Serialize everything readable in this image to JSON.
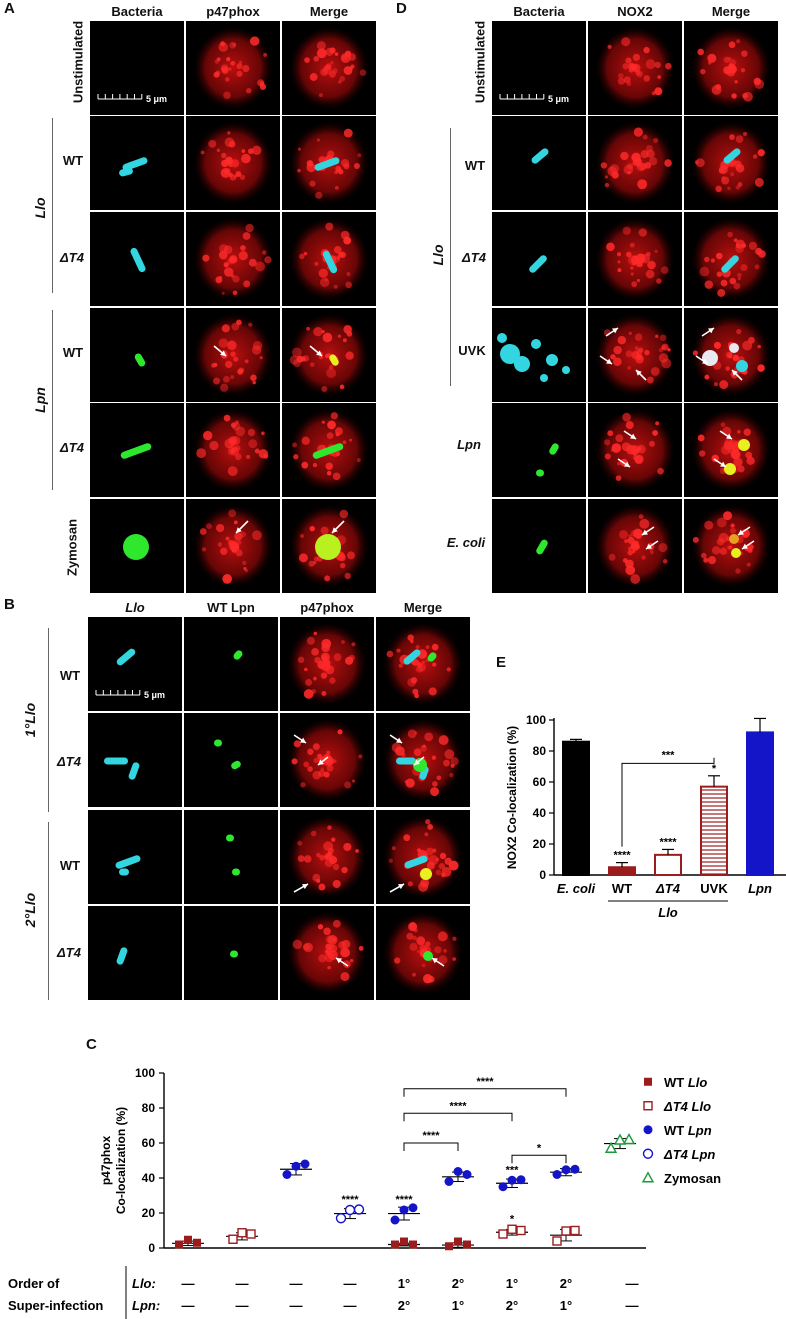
{
  "panelA": {
    "label": "A",
    "columns": [
      "Bacteria",
      "p47phox",
      "Merge"
    ],
    "rows": [
      "Unstimulated",
      "WT",
      "ΔT4",
      "WT",
      "ΔT4",
      "Zymosan"
    ],
    "groups": [
      "Llo",
      "Lpn"
    ],
    "scalebar": "5 μm"
  },
  "panelB": {
    "label": "B",
    "columns": [
      "Llo",
      "WT Lpn",
      "p47phox",
      "Merge"
    ],
    "rows": [
      "WT",
      "ΔT4",
      "WT",
      "ΔT4"
    ],
    "groups": [
      "1°Llo",
      "2°Llo"
    ],
    "scalebar": "5 μm"
  },
  "panelD": {
    "label": "D",
    "columns": [
      "Bacteria",
      "NOX2",
      "Merge"
    ],
    "rows": [
      "Unstimulated",
      "WT",
      "ΔT4",
      "UVK",
      "Lpn",
      "E. coli"
    ],
    "groups": [
      "Llo"
    ],
    "scalebar": "5 μm"
  },
  "panelE": {
    "label": "E",
    "chart_data": {
      "type": "bar",
      "categories": [
        "E. coli",
        "WT",
        "ΔT4",
        "UVK",
        "Lpn"
      ],
      "values": [
        86,
        5,
        13,
        57,
        92
      ],
      "errors": [
        1.5,
        3,
        3.5,
        7,
        9
      ],
      "significance": [
        "",
        "****",
        "****",
        "*",
        ""
      ],
      "bracket": {
        "from": "WT",
        "to": "UVK",
        "label": "***"
      },
      "group_label": "Llo",
      "ylabel": "NOX2 Co-localization (%)",
      "ylim": [
        0,
        100
      ],
      "yticks": [
        0,
        20,
        40,
        60,
        80,
        100
      ],
      "colors": [
        "#000000",
        "#9b1c1c",
        "#9b1c1c",
        "#9b1c1c",
        "#1414c8"
      ],
      "fill": [
        "solid",
        "solid",
        "hollow",
        "hatched",
        "solid"
      ]
    }
  },
  "panelC": {
    "label": "C",
    "chart_data": {
      "type": "scatter",
      "ylabel": "p47phox Co-localization (%)",
      "ylim": [
        0,
        100
      ],
      "yticks": [
        0,
        20,
        40,
        60,
        80,
        100
      ],
      "series": [
        {
          "name": "WT Llo",
          "color": "#9b1c1c",
          "marker": "square-filled",
          "points": [
            {
              "x": 1,
              "y": [
                2,
                3,
                3
              ]
            },
            {
              "x": 5,
              "y": [
                2,
                2,
                2
              ]
            },
            {
              "x": 6,
              "y": [
                1,
                2,
                2
              ]
            }
          ]
        },
        {
          "name": "ΔT4 Llo",
          "color": "#9b1c1c",
          "marker": "square-open",
          "points": [
            {
              "x": 2,
              "y": [
                5,
                7,
                8
              ]
            },
            {
              "x": 7,
              "y": [
                8,
                9,
                10
              ]
            },
            {
              "x": 8,
              "y": [
                4,
                8,
                10
              ]
            }
          ]
        },
        {
          "name": "WT Lpn",
          "color": "#1414c8",
          "marker": "circle-filled",
          "points": [
            {
              "x": 3,
              "y": [
                42,
                45,
                48
              ]
            },
            {
              "x": 5,
              "y": [
                16,
                20,
                23
              ]
            },
            {
              "x": 6,
              "y": [
                38,
                42,
                42
              ]
            },
            {
              "x": 7,
              "y": [
                35,
                37,
                39
              ]
            },
            {
              "x": 8,
              "y": [
                42,
                43,
                45
              ]
            }
          ]
        },
        {
          "name": "ΔT4 Lpn",
          "color": "#1414c8",
          "marker": "circle-open",
          "points": [
            {
              "x": 4,
              "y": [
                17,
                20,
                22
              ]
            }
          ]
        },
        {
          "name": "Zymosan",
          "color": "#1a9a3a",
          "marker": "triangle-open",
          "points": [
            {
              "x": 9,
              "y": [
                57,
                60,
                62
              ]
            }
          ]
        }
      ],
      "means": [
        3,
        7,
        45,
        19.5,
        19.5,
        2,
        40,
        36.5,
        43,
        60
      ],
      "point_labels": [
        {
          "x": 4,
          "y": 20,
          "text": "****"
        },
        {
          "x": 5,
          "y": 20,
          "text": "****"
        },
        {
          "x": 7,
          "y": 37,
          "text": "***"
        },
        {
          "x": 7,
          "y": 9,
          "text": "*"
        }
      ],
      "brackets": [
        {
          "from": 5,
          "to": 8,
          "level": 91,
          "text": "****"
        },
        {
          "from": 5,
          "to": 7,
          "level": 77,
          "text": "****"
        },
        {
          "from": 5,
          "to": 6,
          "level": 60,
          "text": "****"
        },
        {
          "from": 7,
          "to": 8,
          "level": 53,
          "text": "*"
        }
      ],
      "order_table": {
        "row_label": "Order of\nSuper-infection",
        "Llo_label": "Llo:",
        "Lpn_label": "Lpn:",
        "Llo": [
          "—",
          "—",
          "—",
          "—",
          "1°",
          "2°",
          "1°",
          "2°",
          "—"
        ],
        "Lpn": [
          "—",
          "—",
          "—",
          "—",
          "2°",
          "1°",
          "2°",
          "1°",
          "—"
        ]
      }
    }
  }
}
